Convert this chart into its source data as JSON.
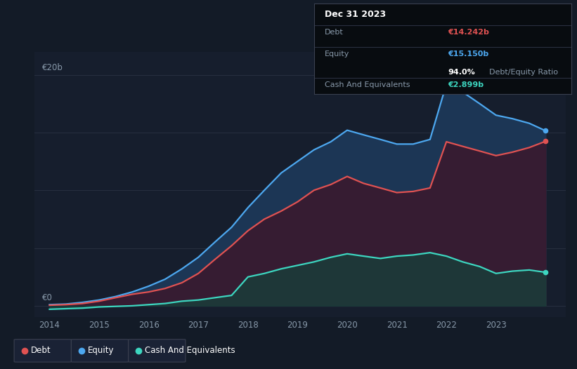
{
  "background_color": "#131b27",
  "plot_bg_color": "#161e2d",
  "grid_color": "#283040",
  "years": [
    2014,
    2014.33,
    2014.67,
    2015,
    2015.33,
    2015.67,
    2016,
    2016.33,
    2016.67,
    2017,
    2017.33,
    2017.67,
    2018,
    2018.33,
    2018.67,
    2019,
    2019.33,
    2019.67,
    2020,
    2020.33,
    2020.67,
    2021,
    2021.33,
    2021.67,
    2022,
    2022.33,
    2022.67,
    2023,
    2023.33,
    2023.67,
    2024
  ],
  "debt": [
    0.05,
    0.1,
    0.2,
    0.4,
    0.7,
    1.0,
    1.2,
    1.5,
    2.0,
    2.8,
    4.0,
    5.2,
    6.5,
    7.5,
    8.2,
    9.0,
    10.0,
    10.5,
    11.2,
    10.6,
    10.2,
    9.8,
    9.9,
    10.2,
    14.2,
    13.8,
    13.4,
    13.0,
    13.3,
    13.7,
    14.242
  ],
  "equity": [
    0.1,
    0.15,
    0.3,
    0.5,
    0.8,
    1.2,
    1.7,
    2.3,
    3.2,
    4.2,
    5.5,
    6.8,
    8.5,
    10.0,
    11.5,
    12.5,
    13.5,
    14.2,
    15.2,
    14.8,
    14.4,
    14.0,
    14.0,
    14.4,
    19.2,
    18.5,
    17.5,
    16.5,
    16.2,
    15.8,
    15.15
  ],
  "cash": [
    -0.3,
    -0.25,
    -0.2,
    -0.1,
    -0.05,
    0.0,
    0.1,
    0.2,
    0.4,
    0.5,
    0.7,
    0.9,
    2.5,
    2.8,
    3.2,
    3.5,
    3.8,
    4.2,
    4.5,
    4.3,
    4.1,
    4.3,
    4.4,
    4.6,
    4.3,
    3.8,
    3.4,
    2.8,
    3.0,
    3.1,
    2.899
  ],
  "debt_color": "#e05252",
  "equity_color": "#4da8f0",
  "cash_color": "#3dd6c0",
  "equity_fill": "#1c3655",
  "debt_fill": "#3a1a2f",
  "cash_fill": "#1a3d3a",
  "ylim": [
    -1.0,
    22
  ],
  "xlim": [
    2013.7,
    2024.4
  ],
  "xtick_labels": [
    "2014",
    "2015",
    "2016",
    "2017",
    "2018",
    "2019",
    "2020",
    "2021",
    "2022",
    "2023"
  ],
  "xtick_positions": [
    2014,
    2015,
    2016,
    2017,
    2018,
    2019,
    2020,
    2021,
    2022,
    2023
  ],
  "tooltip_title": "Dec 31 2023",
  "tooltip_debt_label": "Debt",
  "tooltip_debt_value": "€14.242b",
  "tooltip_equity_label": "Equity",
  "tooltip_equity_value": "€15.150b",
  "tooltip_ratio_value": "94.0%",
  "tooltip_ratio_label": "Debt/Equity Ratio",
  "tooltip_cash_label": "Cash And Equivalents",
  "tooltip_cash_value": "€2.899b",
  "legend_items": [
    {
      "label": "Debt",
      "color": "#e05252"
    },
    {
      "label": "Equity",
      "color": "#4da8f0"
    },
    {
      "label": "Cash And Equivalents",
      "color": "#3dd6c0"
    }
  ]
}
